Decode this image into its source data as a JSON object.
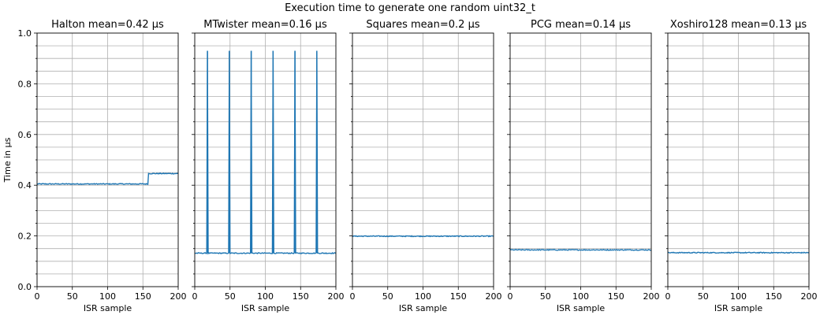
{
  "chart_data": {
    "type": "line",
    "title": "Execution time to generate one random uint32_t",
    "ylabel": "Time in µs",
    "xlabel": "ISR sample",
    "xlim": [
      0,
      200
    ],
    "ylim": [
      0,
      1.0
    ],
    "xticks": [
      0,
      50,
      100,
      150,
      200
    ],
    "yticks": [
      0.0,
      0.2,
      0.4,
      0.6,
      0.8,
      1.0
    ],
    "ytick_labels": [
      "0.0",
      "0.2",
      "0.4",
      "0.6",
      "0.8",
      "1.0"
    ],
    "ytick_minor_step": 0.05,
    "grid": true,
    "line_color": "#1f77b4",
    "panels": [
      {
        "name": "Halton",
        "title": "Halton mean=0.42 µs",
        "segments": [
          {
            "x_from": 0,
            "x_to": 157,
            "value": 0.405
          },
          {
            "x_from": 158,
            "x_to": 200,
            "value": 0.446
          }
        ],
        "spikes": []
      },
      {
        "name": "MTwister",
        "title": "MTwister mean=0.16 µs",
        "segments": [
          {
            "x_from": 0,
            "x_to": 200,
            "value": 0.132
          }
        ],
        "spikes": [
          {
            "x": 18,
            "value": 0.93
          },
          {
            "x": 49,
            "value": 0.93
          },
          {
            "x": 80,
            "value": 0.93
          },
          {
            "x": 111,
            "value": 0.93
          },
          {
            "x": 142,
            "value": 0.93
          },
          {
            "x": 173,
            "value": 0.93
          }
        ]
      },
      {
        "name": "Squares",
        "title": "Squares mean=0.2 µs",
        "segments": [
          {
            "x_from": 0,
            "x_to": 200,
            "value": 0.199
          }
        ],
        "spikes": []
      },
      {
        "name": "PCG",
        "title": "PCG mean=0.14 µs",
        "segments": [
          {
            "x_from": 0,
            "x_to": 200,
            "value": 0.145
          }
        ],
        "spikes": []
      },
      {
        "name": "Xoshiro128",
        "title": "Xoshiro128 mean=0.13 µs",
        "segments": [
          {
            "x_from": 0,
            "x_to": 200,
            "value": 0.134
          }
        ],
        "spikes": []
      }
    ]
  }
}
